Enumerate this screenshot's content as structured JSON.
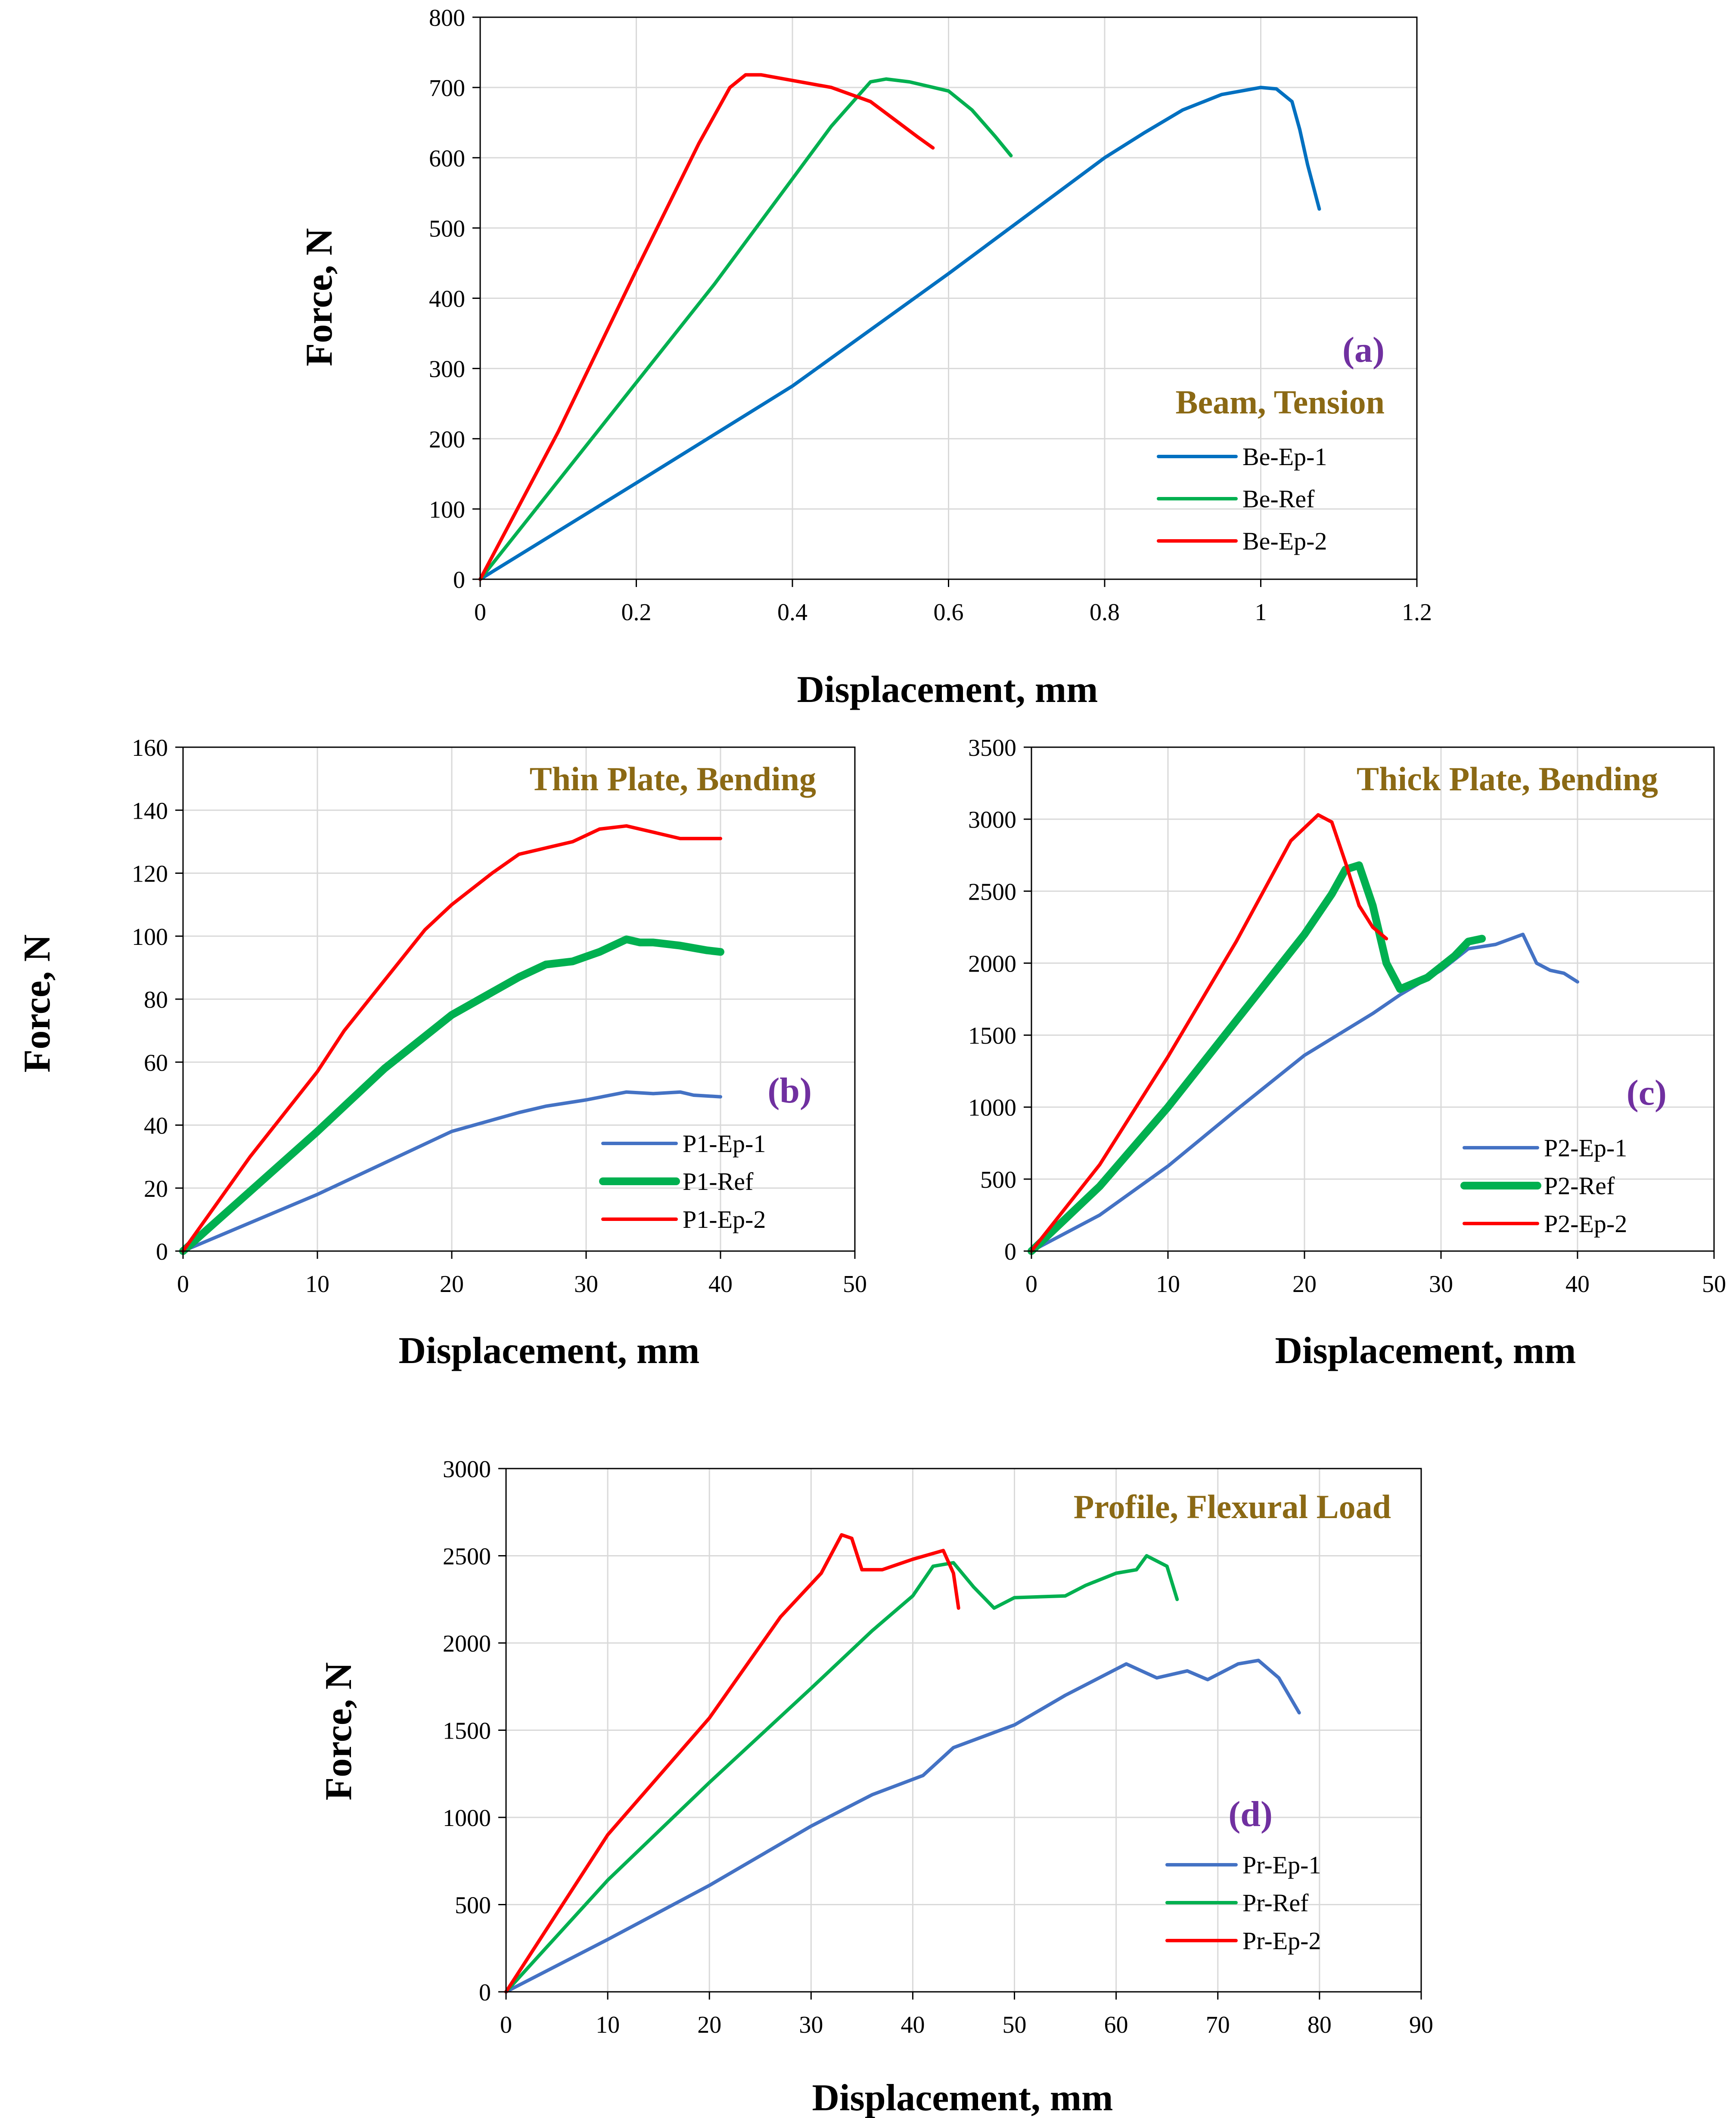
{
  "chart_data": [
    {
      "id": "a",
      "type": "line",
      "title": "Beam, Tension",
      "tag": "(a)",
      "xlabel": "Displacement, mm",
      "ylabel": "Force, N",
      "xlim": [
        0,
        1.2
      ],
      "ylim": [
        0,
        800
      ],
      "xticks": [
        0,
        0.2,
        0.4,
        0.6,
        0.8,
        1,
        1.2
      ],
      "xtick_labels": [
        "0",
        "0.2",
        "0.4",
        "0.6",
        "0.8",
        "1",
        "1.2"
      ],
      "yticks": [
        0,
        100,
        200,
        300,
        400,
        500,
        600,
        700,
        800
      ],
      "ytick_labels": [
        "0",
        "100",
        "200",
        "300",
        "400",
        "500",
        "600",
        "700",
        "800"
      ],
      "grid": true,
      "legend_position": "bottom-right",
      "series": [
        {
          "name": "Be-Ep-1",
          "color": "#0070C0",
          "width": "normal",
          "points": [
            [
              0,
              0
            ],
            [
              0.2,
              137
            ],
            [
              0.4,
              275
            ],
            [
              0.6,
              435
            ],
            [
              0.8,
              600
            ],
            [
              0.85,
              635
            ],
            [
              0.9,
              668
            ],
            [
              0.95,
              690
            ],
            [
              1.0,
              700
            ],
            [
              1.02,
              698
            ],
            [
              1.04,
              680
            ],
            [
              1.05,
              640
            ],
            [
              1.06,
              590
            ],
            [
              1.075,
              527
            ]
          ]
        },
        {
          "name": "Be-Ref",
          "color": "#00B050",
          "width": "normal",
          "points": [
            [
              0,
              0
            ],
            [
              0.1,
              140
            ],
            [
              0.2,
              280
            ],
            [
              0.3,
              420
            ],
            [
              0.4,
              570
            ],
            [
              0.45,
              645
            ],
            [
              0.5,
              708
            ],
            [
              0.52,
              712
            ],
            [
              0.55,
              708
            ],
            [
              0.6,
              695
            ],
            [
              0.63,
              668
            ],
            [
              0.66,
              630
            ],
            [
              0.68,
              603
            ]
          ]
        },
        {
          "name": "Be-Ep-2",
          "color": "#FF0000",
          "width": "normal",
          "points": [
            [
              0,
              0
            ],
            [
              0.1,
              210
            ],
            [
              0.2,
              440
            ],
            [
              0.28,
              620
            ],
            [
              0.32,
              700
            ],
            [
              0.34,
              718
            ],
            [
              0.36,
              718
            ],
            [
              0.4,
              710
            ],
            [
              0.45,
              700
            ],
            [
              0.5,
              680
            ],
            [
              0.53,
              655
            ],
            [
              0.56,
              630
            ],
            [
              0.58,
              614
            ]
          ]
        }
      ]
    },
    {
      "id": "b",
      "type": "line",
      "title": "Thin Plate, Bending",
      "tag": "(b)",
      "xlabel": "Displacement, mm",
      "ylabel": "Force, N",
      "xlim": [
        0,
        50
      ],
      "ylim": [
        0,
        160
      ],
      "xticks": [
        0,
        10,
        20,
        30,
        40,
        50
      ],
      "xtick_labels": [
        "0",
        "10",
        "20",
        "30",
        "40",
        "50"
      ],
      "yticks": [
        0,
        20,
        40,
        60,
        80,
        100,
        120,
        140,
        160
      ],
      "ytick_labels": [
        "0",
        "20",
        "40",
        "60",
        "80",
        "100",
        "120",
        "140",
        "160"
      ],
      "grid": true,
      "legend_position": "bottom-right",
      "series": [
        {
          "name": "P1-Ep-1",
          "color": "#4472C4",
          "width": "normal",
          "points": [
            [
              0,
              0
            ],
            [
              5,
              9
            ],
            [
              10,
              18
            ],
            [
              12,
              22
            ],
            [
              15,
              28
            ],
            [
              20,
              38
            ],
            [
              25,
              44
            ],
            [
              27,
              46
            ],
            [
              30,
              48
            ],
            [
              33,
              50.5
            ],
            [
              35,
              50
            ],
            [
              37,
              50.5
            ],
            [
              38,
              49.5
            ],
            [
              40,
              49
            ]
          ]
        },
        {
          "name": "P1-Ref",
          "color": "#00B050",
          "width": "thick",
          "points": [
            [
              0,
              0
            ],
            [
              5,
              19
            ],
            [
              10,
              38
            ],
            [
              12,
              46
            ],
            [
              15,
              58
            ],
            [
              20,
              75
            ],
            [
              25,
              87
            ],
            [
              27,
              91
            ],
            [
              29,
              92
            ],
            [
              31,
              95
            ],
            [
              33,
              99
            ],
            [
              34,
              98
            ],
            [
              35,
              98
            ],
            [
              37,
              97
            ],
            [
              39,
              95.5
            ],
            [
              40,
              95
            ]
          ]
        },
        {
          "name": "P1-Ep-2",
          "color": "#FF0000",
          "width": "normal",
          "points": [
            [
              0,
              0
            ],
            [
              5,
              30
            ],
            [
              10,
              57
            ],
            [
              12,
              70
            ],
            [
              15,
              86
            ],
            [
              18,
              102
            ],
            [
              20,
              110
            ],
            [
              23,
              120
            ],
            [
              25,
              126
            ],
            [
              27,
              128
            ],
            [
              29,
              130
            ],
            [
              31,
              134
            ],
            [
              33,
              135
            ],
            [
              35,
              133
            ],
            [
              37,
              131
            ],
            [
              40,
              131
            ]
          ]
        }
      ]
    },
    {
      "id": "c",
      "type": "line",
      "title": "Thick  Plate, Bending",
      "tag": "(c)",
      "xlabel": "Displacement, mm",
      "ylabel": "",
      "xlim": [
        0,
        50
      ],
      "ylim": [
        0,
        3500
      ],
      "xticks": [
        0,
        10,
        20,
        30,
        40,
        50
      ],
      "xtick_labels": [
        "0",
        "10",
        "20",
        "30",
        "40",
        "50"
      ],
      "yticks": [
        0,
        500,
        1000,
        1500,
        2000,
        2500,
        3000,
        3500
      ],
      "ytick_labels": [
        "0",
        "500",
        "1000",
        "1500",
        "2000",
        "2500",
        "3000",
        "3500"
      ],
      "grid": true,
      "legend_position": "bottom-right",
      "series": [
        {
          "name": "P2-Ep-1",
          "color": "#4472C4",
          "width": "normal",
          "points": [
            [
              0,
              0
            ],
            [
              5,
              250
            ],
            [
              10,
              590
            ],
            [
              15,
              980
            ],
            [
              20,
              1360
            ],
            [
              25,
              1650
            ],
            [
              27,
              1780
            ],
            [
              30,
              1950
            ],
            [
              32,
              2100
            ],
            [
              34,
              2130
            ],
            [
              36,
              2200
            ],
            [
              37,
              2000
            ],
            [
              38,
              1950
            ],
            [
              39,
              1930
            ],
            [
              40,
              1870
            ]
          ]
        },
        {
          "name": "P2-Ref",
          "color": "#00B050",
          "width": "thick",
          "points": [
            [
              0,
              0
            ],
            [
              5,
              450
            ],
            [
              10,
              1000
            ],
            [
              15,
              1600
            ],
            [
              20,
              2200
            ],
            [
              22,
              2480
            ],
            [
              23,
              2650
            ],
            [
              24,
              2680
            ],
            [
              25,
              2400
            ],
            [
              26,
              2000
            ],
            [
              27,
              1820
            ],
            [
              29,
              1900
            ],
            [
              31,
              2050
            ],
            [
              32,
              2150
            ],
            [
              33,
              2170
            ]
          ]
        },
        {
          "name": "P2-Ep-2",
          "color": "#FF0000",
          "width": "normal",
          "points": [
            [
              0,
              0
            ],
            [
              5,
              600
            ],
            [
              10,
              1350
            ],
            [
              15,
              2150
            ],
            [
              19,
              2850
            ],
            [
              21,
              3030
            ],
            [
              22,
              2980
            ],
            [
              23,
              2700
            ],
            [
              24,
              2400
            ],
            [
              25,
              2250
            ],
            [
              26,
              2170
            ]
          ]
        }
      ]
    },
    {
      "id": "d",
      "type": "line",
      "title": "Profile, Flexural Load",
      "tag": "(d)",
      "xlabel": "Displacement, mm",
      "ylabel": "Force, N",
      "xlim": [
        0,
        90
      ],
      "ylim": [
        0,
        3000
      ],
      "xticks": [
        0,
        10,
        20,
        30,
        40,
        50,
        60,
        70,
        80,
        90
      ],
      "xtick_labels": [
        "0",
        "10",
        "20",
        "30",
        "40",
        "50",
        "60",
        "70",
        "80",
        "90"
      ],
      "yticks": [
        0,
        500,
        1000,
        1500,
        2000,
        2500,
        3000
      ],
      "ytick_labels": [
        "0",
        "500",
        "1000",
        "1500",
        "2000",
        "2500",
        "3000"
      ],
      "grid": true,
      "legend_position": "bottom-right",
      "series": [
        {
          "name": "Pr-Ep-1",
          "color": "#4472C4",
          "width": "normal",
          "points": [
            [
              0,
              0
            ],
            [
              10,
              300
            ],
            [
              20,
              610
            ],
            [
              30,
              950
            ],
            [
              36,
              1130
            ],
            [
              41,
              1240
            ],
            [
              44,
              1400
            ],
            [
              50,
              1530
            ],
            [
              55,
              1700
            ],
            [
              61,
              1880
            ],
            [
              64,
              1800
            ],
            [
              67,
              1840
            ],
            [
              69,
              1790
            ],
            [
              72,
              1880
            ],
            [
              74,
              1900
            ],
            [
              76,
              1800
            ],
            [
              78,
              1600
            ]
          ]
        },
        {
          "name": "Pr-Ref",
          "color": "#00B050",
          "width": "normal",
          "points": [
            [
              0,
              0
            ],
            [
              10,
              640
            ],
            [
              20,
              1200
            ],
            [
              30,
              1740
            ],
            [
              36,
              2070
            ],
            [
              40,
              2270
            ],
            [
              42,
              2440
            ],
            [
              44,
              2460
            ],
            [
              46,
              2320
            ],
            [
              48,
              2200
            ],
            [
              50,
              2260
            ],
            [
              55,
              2270
            ],
            [
              57,
              2330
            ],
            [
              60,
              2400
            ],
            [
              62,
              2420
            ],
            [
              63,
              2500
            ],
            [
              65,
              2440
            ],
            [
              66,
              2250
            ]
          ]
        },
        {
          "name": "Pr-Ep-2",
          "color": "#FF0000",
          "width": "normal",
          "points": [
            [
              0,
              0
            ],
            [
              10,
              900
            ],
            [
              20,
              1570
            ],
            [
              27,
              2150
            ],
            [
              31,
              2400
            ],
            [
              33,
              2620
            ],
            [
              34,
              2600
            ],
            [
              35,
              2420
            ],
            [
              37,
              2420
            ],
            [
              40,
              2480
            ],
            [
              43,
              2530
            ],
            [
              44,
              2400
            ],
            [
              44.5,
              2200
            ]
          ]
        }
      ]
    }
  ]
}
